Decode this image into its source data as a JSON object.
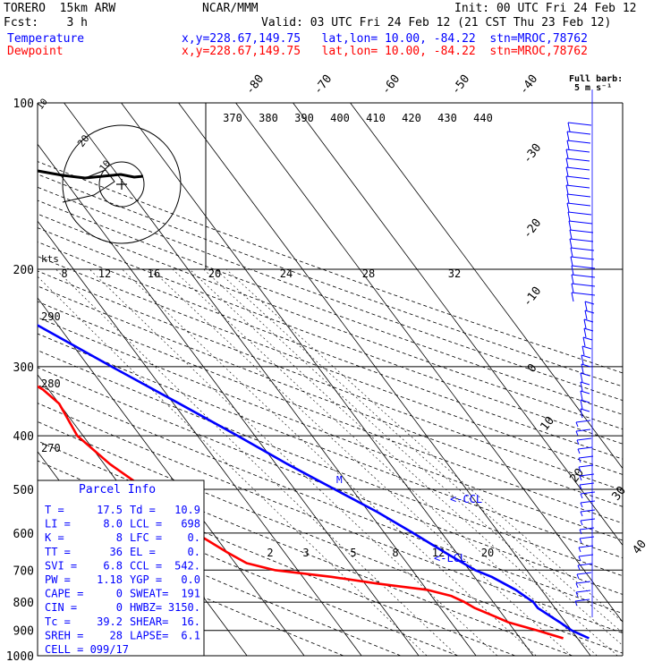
{
  "header": {
    "model": "TORERO  15km ARW",
    "org": "NCAR/MMM",
    "init": "Init: 00 UTC Fri 24 Feb 12",
    "fcst": "Fcst:    3 h",
    "valid": "Valid: 03 UTC Fri 24 Feb 12 (21 CST Thu 23 Feb 12)",
    "temp_label": "Temperature",
    "dew_label": "Dewpoint",
    "temp_loc": "x,y=228.67,149.75   lat,lon= 10.00, -84.22  stn=MROC,78762",
    "dew_loc": "x,y=228.67,149.75   lat,lon= 10.00, -84.22  stn=MROC,78762",
    "barb_title": "Full barb:",
    "barb_sub": "5 m s⁻¹"
  },
  "colors": {
    "temperature": "#0000ff",
    "dewpoint": "#ff0000",
    "axes": "#000000",
    "wind": "#0000ff"
  },
  "chart_data": {
    "type": "line",
    "title": "",
    "pressure_levels": [
      100,
      200,
      300,
      400,
      500,
      600,
      700,
      800,
      900,
      1000
    ],
    "isotherm_labels": [
      "-80",
      "-70",
      "-60",
      "-50",
      "-40",
      "-30",
      "-20",
      "-10",
      "0",
      "10",
      "20",
      "30",
      "40"
    ],
    "theta_labels": [
      "370",
      "380",
      "390",
      "400",
      "410",
      "420",
      "430",
      "440"
    ],
    "mixing_ratio_upper": [
      "8",
      "12",
      "16",
      "20",
      "24",
      "28",
      "32"
    ],
    "mixing_ratio_lower": [
      "2",
      "3",
      "5",
      "8",
      "12",
      "20"
    ],
    "adiabat_left_labels": [
      "290",
      "280",
      "270"
    ],
    "hodograph": {
      "units": "kts",
      "ring_label": "20",
      "inner_label": "10"
    },
    "annotations": {
      "ccl": "<-CCL",
      "lcl": "<-LCL",
      "m": "M"
    },
    "series": [
      {
        "name": "Temperature",
        "color": "#0000ff",
        "p": [
          930,
          900,
          870,
          820,
          800,
          760,
          720,
          700,
          650,
          600,
          550,
          500,
          450,
          400,
          350,
          300,
          250,
          200,
          170,
          150,
          130,
          115,
          100
        ],
        "t": [
          22,
          20,
          19,
          17,
          17,
          15.5,
          13,
          11,
          8,
          5,
          1.5,
          -3,
          -8,
          -13,
          -19,
          -26,
          -34,
          -46,
          -54,
          -60,
          -66,
          -74,
          -78
        ]
      },
      {
        "name": "Dewpoint",
        "color": "#ff0000",
        "p": [
          930,
          900,
          870,
          850,
          820,
          800,
          780,
          760,
          740,
          720,
          700,
          680,
          650,
          600,
          550,
          500,
          450,
          400,
          350,
          330,
          300,
          270,
          250,
          220,
          200,
          170,
          150,
          130,
          115,
          100
        ],
        "t": [
          17.5,
          14,
          10,
          8.5,
          6,
          5,
          3.5,
          0,
          -8,
          -15,
          -24,
          -28,
          -30,
          -33,
          -35,
          -36,
          -39,
          -41,
          -40,
          -41,
          -45,
          -51,
          -52,
          -54,
          -56,
          -66,
          -72,
          -74,
          -75,
          -77
        ]
      }
    ]
  },
  "parcel_info": {
    "title": "Parcel Info",
    "rows": [
      [
        "T  =",
        "17.5",
        "Td =",
        "10.9"
      ],
      [
        "LI =",
        "8.0",
        "LCL =",
        "698"
      ],
      [
        "K  =",
        "8",
        "LFC =",
        "0."
      ],
      [
        "TT =",
        "36",
        "EL  =",
        "0."
      ],
      [
        "SVI =",
        "6.8",
        "CCL =",
        "542."
      ],
      [
        "PW =",
        "1.18",
        "YGP =",
        "0.0"
      ],
      [
        "CAPE =",
        "0",
        "SWEAT=",
        "191"
      ],
      [
        "CIN =",
        "0",
        "HWBZ=",
        "3150."
      ],
      [
        "Tc =",
        "39.2",
        "SHEAR=",
        "16."
      ],
      [
        "SREH =",
        "28",
        "LAPSE=",
        "6.1"
      ]
    ],
    "cell": "CELL = 099/17"
  },
  "wind_profile": {
    "speed_labels": [
      "30",
      "40"
    ]
  }
}
